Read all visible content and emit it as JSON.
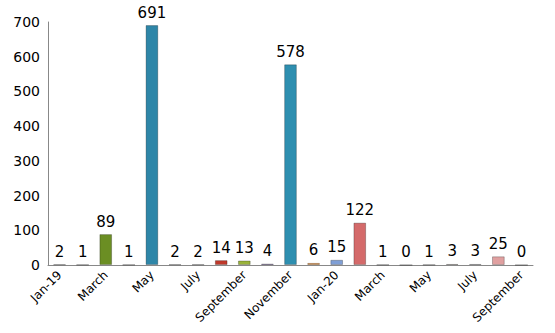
{
  "chart_data": {
    "type": "bar",
    "categories": [
      "Jan-19",
      null,
      "March",
      null,
      "May",
      null,
      "July",
      null,
      "September",
      null,
      "November",
      null,
      "Jan-20",
      null,
      "March",
      null,
      "May",
      null,
      "July",
      null,
      "September"
    ],
    "values": [
      2,
      1,
      89,
      1,
      691,
      2,
      2,
      14,
      13,
      4,
      578,
      6,
      15,
      122,
      1,
      0,
      1,
      3,
      3,
      25,
      0
    ],
    "colors": [
      "#1f3d7a",
      "#8b2a2a",
      "#6b8e23",
      "#5b3a8c",
      "#2e86a8",
      "#e07b1a",
      "#2f6fb5",
      "#c0392b",
      "#9ab33a",
      "#6a4c9c",
      "#2e8fb0",
      "#e5862a",
      "#7f9fd6",
      "#d46a6a",
      "#a8c060",
      "#9a88c0",
      "#6ab0c8",
      "#f0a060",
      "#a8bce0",
      "#e0a0a0",
      "#c8d890"
    ],
    "ylim": [
      0,
      700
    ],
    "yticks": [
      0,
      100,
      200,
      300,
      400,
      500,
      600,
      700
    ],
    "grid": false,
    "data_labels": true
  }
}
